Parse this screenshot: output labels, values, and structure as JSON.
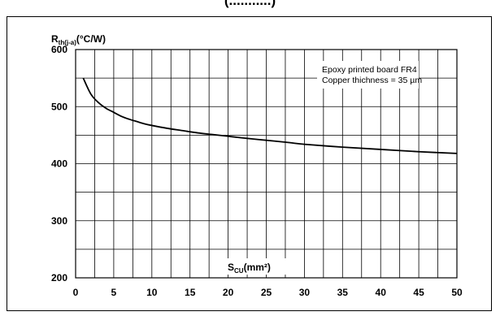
{
  "header": {
    "title_fragment": "(...........)"
  },
  "chart_data": {
    "type": "line",
    "ylabel_main": "R",
    "ylabel_sub": "th(j-a)",
    "ylabel_unit": "(°C/W)",
    "xlabel_main": "S",
    "xlabel_sub": "CU",
    "xlabel_unit": "(mm²)",
    "xlim": [
      0,
      50
    ],
    "ylim": [
      200,
      600
    ],
    "x_ticks": [
      0,
      5,
      10,
      15,
      20,
      25,
      30,
      35,
      40,
      45,
      50
    ],
    "x_tick_labels": [
      "0",
      "5",
      "10",
      "15",
      "20",
      "25",
      "30",
      "35",
      "40",
      "45",
      "50"
    ],
    "y_ticks": [
      200,
      300,
      400,
      500,
      600
    ],
    "y_tick_labels": [
      "200",
      "300",
      "400",
      "500",
      "600"
    ],
    "x_grid_step": 2.5,
    "y_grid_step": 50,
    "grid": true,
    "annotations": [
      "Epoxy printed board FR4",
      "Copper thichness = 35 µm"
    ],
    "series": [
      {
        "x": [
          1,
          2,
          3,
          4,
          5,
          6,
          7,
          8,
          9,
          10,
          12,
          14,
          16,
          18,
          20,
          22,
          25,
          28,
          30,
          35,
          40,
          45,
          50
        ],
        "y": [
          550,
          522,
          507,
          497,
          490,
          483,
          478,
          474,
          470,
          467,
          462,
          458,
          454,
          451,
          448,
          445,
          441,
          437,
          434,
          429,
          425,
          421,
          418
        ]
      }
    ]
  }
}
